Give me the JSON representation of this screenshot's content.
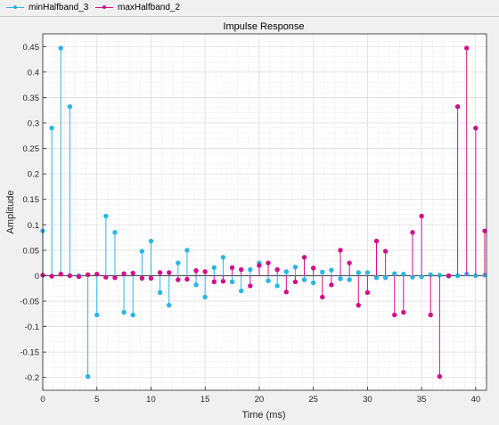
{
  "legend": {
    "items": [
      {
        "label": "minHalfband_3",
        "color": "#2ab6e6"
      },
      {
        "label": "maxHalfband_2",
        "color": "#d10f8c"
      }
    ]
  },
  "chart_data": {
    "type": "stem",
    "title": "Impulse Response",
    "xlabel": "Time (ms)",
    "ylabel": "Amplitude",
    "xlim": [
      0,
      41
    ],
    "ylim": [
      -0.225,
      0.475
    ],
    "xticks": [
      0,
      5,
      10,
      15,
      20,
      25,
      30,
      35,
      40
    ],
    "xtick_labels": [
      "0",
      "5",
      "10",
      "15",
      "20",
      "25",
      "30",
      "35",
      "40"
    ],
    "yticks": [
      -0.2,
      -0.15,
      -0.1,
      -0.05,
      0,
      0.05,
      0.1,
      0.15,
      0.2,
      0.25,
      0.3,
      0.35,
      0.4,
      0.45
    ],
    "ytick_labels": [
      "-0.2",
      "-0.15",
      "-0.1",
      "-0.05",
      "0",
      "0.05",
      "0.1",
      "0.15",
      "0.2",
      "0.25",
      "0.3",
      "0.35",
      "0.4",
      "0.45"
    ],
    "grid": true,
    "series": [
      {
        "name": "minHalfband_3",
        "color": "#2ab6e6",
        "x": [
          0,
          0.833,
          1.667,
          2.5,
          3.333,
          4.167,
          5.0,
          5.833,
          6.667,
          7.5,
          8.333,
          9.167,
          10.0,
          10.833,
          11.667,
          12.5,
          13.333,
          14.167,
          15.0,
          15.833,
          16.667,
          17.5,
          18.333,
          19.167,
          20.0,
          20.833,
          21.667,
          22.5,
          23.333,
          24.167,
          25.0,
          25.833,
          26.667,
          27.5,
          28.333,
          29.167,
          30.0,
          30.833,
          31.667,
          32.5,
          33.333,
          34.167,
          35.0,
          35.833,
          36.667,
          37.5,
          38.333,
          39.167,
          40.0,
          40.833
        ],
        "y": [
          0.088,
          0.29,
          0.447,
          0.332,
          0.0,
          -0.198,
          -0.077,
          0.117,
          0.085,
          -0.072,
          -0.077,
          0.048,
          0.068,
          -0.033,
          -0.058,
          0.025,
          0.05,
          -0.018,
          -0.042,
          0.016,
          0.036,
          -0.012,
          -0.03,
          0.012,
          0.025,
          -0.01,
          -0.02,
          0.008,
          0.017,
          -0.008,
          -0.014,
          0.007,
          0.011,
          -0.006,
          -0.008,
          0.006,
          0.006,
          -0.004,
          -0.004,
          0.004,
          0.003,
          -0.003,
          -0.002,
          0.002,
          0.001,
          -0.001,
          0.0,
          0.003,
          0.0,
          0.001
        ]
      },
      {
        "name": "maxHalfband_2",
        "color": "#d10f8c",
        "x": [
          0,
          0.833,
          1.667,
          2.5,
          3.333,
          4.167,
          5.0,
          5.833,
          6.667,
          7.5,
          8.333,
          9.167,
          10.0,
          10.833,
          11.667,
          12.5,
          13.333,
          14.167,
          15.0,
          15.833,
          16.667,
          17.5,
          18.333,
          19.167,
          20.0,
          20.833,
          21.667,
          22.5,
          23.333,
          24.167,
          25.0,
          25.833,
          26.667,
          27.5,
          28.333,
          29.167,
          30.0,
          30.833,
          31.667,
          32.5,
          33.333,
          34.167,
          35.0,
          35.833,
          36.667,
          37.5,
          38.333,
          39.167,
          40.0,
          40.833
        ],
        "y": [
          0.001,
          -0.001,
          0.003,
          0.0,
          -0.002,
          0.002,
          0.003,
          -0.003,
          -0.004,
          0.004,
          0.005,
          -0.005,
          -0.005,
          0.006,
          0.006,
          -0.008,
          -0.007,
          0.01,
          0.008,
          -0.012,
          -0.011,
          0.016,
          0.012,
          -0.02,
          0.02,
          0.025,
          0.012,
          -0.032,
          -0.012,
          0.036,
          0.015,
          -0.042,
          -0.018,
          0.05,
          0.025,
          -0.058,
          -0.033,
          0.068,
          0.048,
          -0.077,
          -0.072,
          0.085,
          0.117,
          -0.077,
          -0.198,
          0.0,
          0.332,
          0.447,
          0.29,
          0.088
        ]
      }
    ]
  }
}
